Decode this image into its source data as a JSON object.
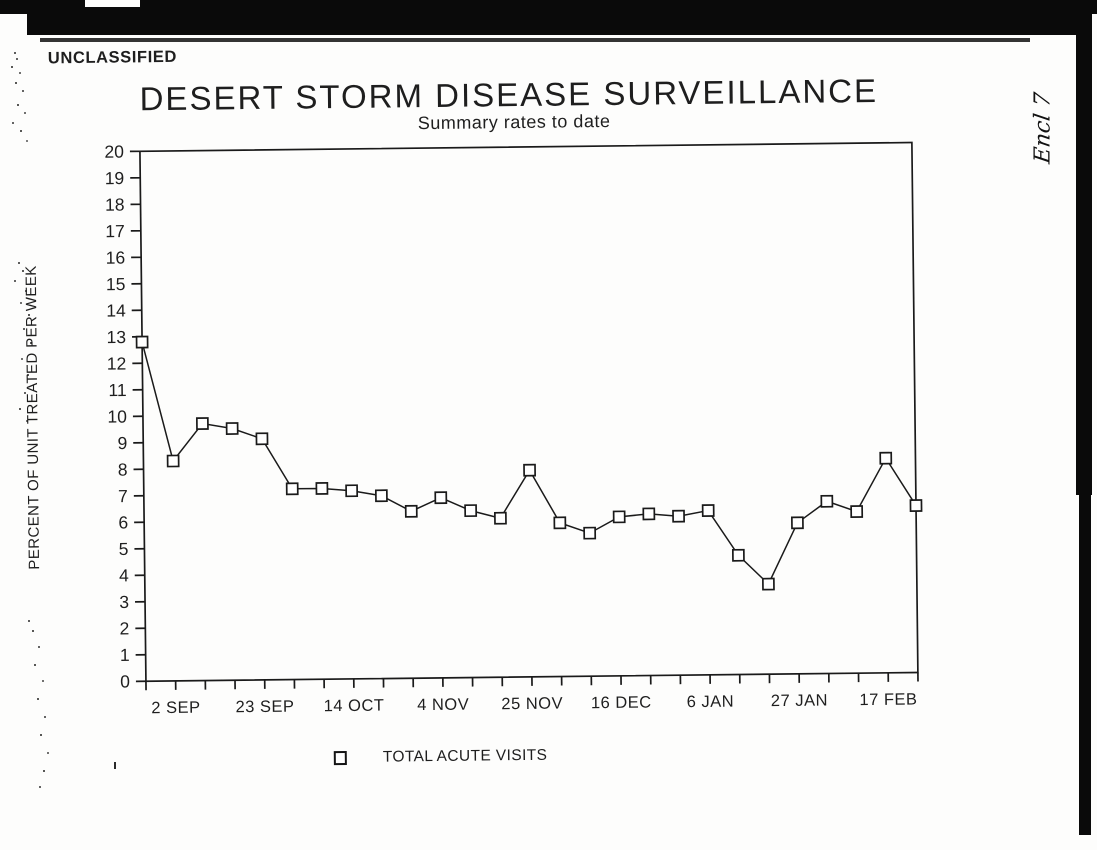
{
  "page": {
    "classification": "UNCLASSIFIED",
    "handwritten_note": "Encl 7"
  },
  "chart": {
    "title": "DESERT STORM DISEASE SURVEILLANCE",
    "subtitle": "Summary rates to date",
    "y_axis_title": "PERCENT OF UNIT TREATED PER WEEK",
    "legend": {
      "marker": "open-square",
      "label": "TOTAL ACUTE VISITS"
    }
  },
  "chart_data": {
    "type": "line",
    "title": "DESERT STORM DISEASE SURVEILLANCE",
    "subtitle": "Summary rates to date",
    "xlabel": "",
    "ylabel": "PERCENT OF UNIT TREATED PER WEEK",
    "ylim": [
      0,
      20
    ],
    "y_ticks": [
      0,
      1,
      2,
      3,
      4,
      5,
      6,
      7,
      8,
      9,
      10,
      11,
      12,
      13,
      14,
      15,
      16,
      17,
      18,
      19,
      20
    ],
    "grid": false,
    "legend_position": "bottom",
    "marker_style": "open-square",
    "ink_color": "#1a1a1a",
    "n_points": 27,
    "x_interval": "weekly",
    "x_tick_labels": [
      {
        "index": 1,
        "label": "2 SEP"
      },
      {
        "index": 4,
        "label": "23 SEP"
      },
      {
        "index": 7,
        "label": "14 OCT"
      },
      {
        "index": 10,
        "label": "4 NOV"
      },
      {
        "index": 13,
        "label": "25 NOV"
      },
      {
        "index": 16,
        "label": "16 DEC"
      },
      {
        "index": 19,
        "label": "6 JAN"
      },
      {
        "index": 22,
        "label": "27 JAN"
      },
      {
        "index": 25,
        "label": "17 FEB"
      }
    ],
    "series": [
      {
        "name": "TOTAL ACUTE VISITS",
        "values": [
          12.8,
          8.3,
          9.7,
          9.5,
          9.1,
          7.2,
          7.2,
          7.1,
          6.9,
          6.3,
          6.8,
          6.3,
          6.0,
          7.8,
          5.8,
          5.4,
          6.0,
          6.1,
          6.0,
          6.2,
          4.5,
          3.4,
          5.7,
          6.5,
          6.1,
          8.1,
          6.3
        ]
      }
    ]
  }
}
